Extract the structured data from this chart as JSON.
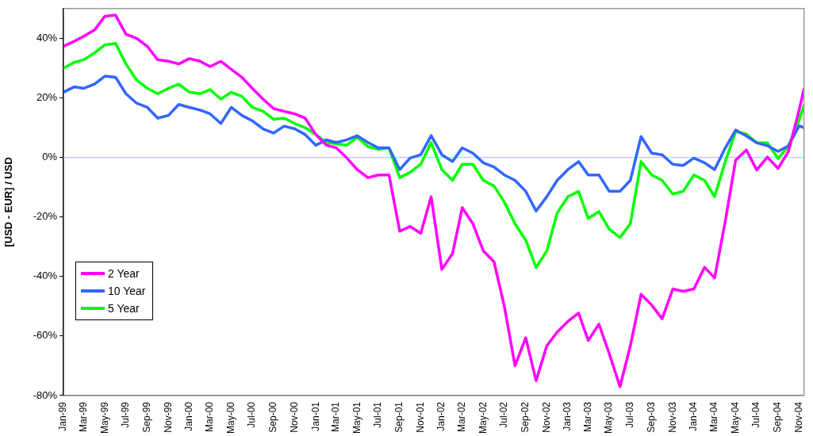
{
  "chart_data": {
    "type": "line",
    "ylabel": "[USD - EUR] / USD",
    "x": [
      "1999-01",
      "1999-02",
      "1999-03",
      "1999-04",
      "1999-05",
      "1999-06",
      "1999-07",
      "1999-08",
      "1999-09",
      "1999-10",
      "1999-11",
      "1999-12",
      "2000-01",
      "2000-02",
      "2000-03",
      "2000-04",
      "2000-05",
      "2000-06",
      "2000-07",
      "2000-08",
      "2000-09",
      "2000-10",
      "2000-11",
      "2000-12",
      "2001-01",
      "2001-02",
      "2001-03",
      "2001-04",
      "2001-05",
      "2001-06",
      "2001-07",
      "2001-08",
      "2001-09",
      "2001-10",
      "2001-11",
      "2001-12",
      "2002-01",
      "2002-02",
      "2002-03",
      "2002-04",
      "2002-05",
      "2002-06",
      "2002-07",
      "2002-08",
      "2002-09",
      "2002-10",
      "2002-11",
      "2002-12",
      "2003-01",
      "2003-02",
      "2003-03",
      "2003-04",
      "2003-05",
      "2003-06",
      "2003-07",
      "2003-08",
      "2003-09",
      "2003-10",
      "2003-11",
      "2003-12",
      "2004-01",
      "2004-02",
      "2004-03",
      "2004-04",
      "2004-05",
      "2004-06",
      "2004-07",
      "2004-08",
      "2004-09",
      "2004-10",
      "2004-11",
      "2004-11-15"
    ],
    "series": [
      {
        "name": "2 Year",
        "color": "#ff00ff",
        "values": [
          37.3,
          39,
          40.7,
          42.8,
          47.4,
          47.8,
          41.4,
          40,
          37.3,
          32.8,
          32.3,
          31.4,
          33.2,
          32.3,
          30.5,
          32.3,
          29.6,
          26.9,
          23.2,
          19.6,
          16.4,
          15.5,
          14.6,
          13.2,
          7.7,
          4.1,
          3.2,
          -0.2,
          -4.1,
          -6.8,
          -5.9,
          -5.9,
          -24.8,
          -23.2,
          -25.5,
          -13.2,
          -37.6,
          -32.3,
          -16.9,
          -22.3,
          -31.4,
          -35,
          -50,
          -70,
          -60.6,
          -75,
          -63.3,
          -58.7,
          -55.1,
          -52.3,
          -61.5,
          -56,
          -66,
          -77,
          -63.3,
          -46,
          -49.6,
          -54.2,
          -44.2,
          -45,
          -44.2,
          -36.9,
          -40.5,
          -21.4,
          -0.9,
          2.5,
          -4.2,
          0.1,
          -3.7,
          2,
          16,
          23
        ]
      },
      {
        "name": "10 Year",
        "color": "#3366ff",
        "values": [
          21.9,
          23.7,
          23.2,
          24.6,
          27.3,
          26.9,
          21.4,
          18.2,
          16.8,
          13.2,
          14.1,
          17.8,
          16.8,
          15.9,
          14.6,
          11.4,
          16.8,
          14.1,
          12.3,
          9.6,
          8.2,
          10.5,
          9.6,
          7.7,
          4.1,
          5.9,
          5,
          5.9,
          7.3,
          5,
          3.2,
          3.2,
          -4.1,
          -0.2,
          0.9,
          7.3,
          0.9,
          -1.4,
          3.2,
          1.4,
          -1.8,
          -3.2,
          -5.9,
          -7.7,
          -11.4,
          -18,
          -13.2,
          -7.7,
          -4.1,
          -1.4,
          -5.9,
          -5.9,
          -11.4,
          -11.4,
          -7.7,
          7,
          1.4,
          0.9,
          -2.3,
          -2.7,
          -0.2,
          -1.8,
          -4.1,
          3.2,
          9.2,
          7.2,
          4.9,
          3.9,
          2,
          3.9,
          10.6,
          10
        ]
      },
      {
        "name": "5 Year",
        "color": "#00ff00",
        "values": [
          30,
          31.9,
          32.8,
          35.1,
          37.8,
          38.3,
          31.4,
          26,
          23.2,
          21.4,
          23.2,
          24.6,
          21.9,
          21.4,
          22.8,
          19.6,
          21.9,
          20.5,
          16.8,
          15.5,
          12.8,
          13.2,
          11.4,
          10,
          7.7,
          5,
          4.6,
          4.1,
          6.8,
          3.6,
          2.7,
          3.2,
          -6.8,
          -5,
          -2.3,
          5,
          -4.1,
          -7.7,
          -2.3,
          -2.3,
          -7.7,
          -9.6,
          -15,
          -22.3,
          -27.8,
          -37,
          -31.4,
          -18.7,
          -13.2,
          -11.4,
          -20.5,
          -18.2,
          -24.1,
          -26.9,
          -22.3,
          -1.4,
          -5.9,
          -7.7,
          -12.3,
          -11.4,
          -5.9,
          -7.7,
          -13.2,
          -1.4,
          8.7,
          7.8,
          4.9,
          4.9,
          -0.4,
          3.9,
          12.5,
          17.5
        ]
      }
    ],
    "xlim": [
      "1999-01",
      "2004-11-15"
    ],
    "xticks": [
      {
        "value": "1999-01",
        "label": "Jan-99"
      },
      {
        "value": "1999-03",
        "label": "Mar-99"
      },
      {
        "value": "1999-05",
        "label": "May-99"
      },
      {
        "value": "1999-07",
        "label": "Jul-99"
      },
      {
        "value": "1999-09",
        "label": "Sep-99"
      },
      {
        "value": "1999-11",
        "label": "Nov-99"
      },
      {
        "value": "2000-01",
        "label": "Jan-00"
      },
      {
        "value": "2000-03",
        "label": "Mar-00"
      },
      {
        "value": "2000-05",
        "label": "May-00"
      },
      {
        "value": "2000-07",
        "label": "Jul-00"
      },
      {
        "value": "2000-09",
        "label": "Sep-00"
      },
      {
        "value": "2000-11",
        "label": "Nov-00"
      },
      {
        "value": "2001-01",
        "label": "Jan-01"
      },
      {
        "value": "2001-03",
        "label": "Mar-01"
      },
      {
        "value": "2001-05",
        "label": "May-01"
      },
      {
        "value": "2001-07",
        "label": "Jul-01"
      },
      {
        "value": "2001-09",
        "label": "Sep-01"
      },
      {
        "value": "2001-11",
        "label": "Nov-01"
      },
      {
        "value": "2002-01",
        "label": "Jan-02"
      },
      {
        "value": "2002-03",
        "label": "Mar-02"
      },
      {
        "value": "2002-05",
        "label": "May-02"
      },
      {
        "value": "2002-07",
        "label": "Jul-02"
      },
      {
        "value": "2002-09",
        "label": "Sep-02"
      },
      {
        "value": "2002-11",
        "label": "Nov-02"
      },
      {
        "value": "2003-01",
        "label": "Jan-03"
      },
      {
        "value": "2003-03",
        "label": "Mar-03"
      },
      {
        "value": "2003-05",
        "label": "May-03"
      },
      {
        "value": "2003-07",
        "label": "Jul-03"
      },
      {
        "value": "2003-09",
        "label": "Sep-03"
      },
      {
        "value": "2003-11",
        "label": "Nov-03"
      },
      {
        "value": "2004-01",
        "label": "Jan-04"
      },
      {
        "value": "2004-03",
        "label": "Mar-04"
      },
      {
        "value": "2004-05",
        "label": "May-04"
      },
      {
        "value": "2004-07",
        "label": "Jul-04"
      },
      {
        "value": "2004-09",
        "label": "Sep-04"
      },
      {
        "value": "2004-11",
        "label": "Nov-04"
      }
    ],
    "ylim": [
      -80,
      50
    ],
    "yticks": [
      {
        "value": -80,
        "label": "-80%"
      },
      {
        "value": -60,
        "label": "-60%"
      },
      {
        "value": -40,
        "label": "-40%"
      },
      {
        "value": -20,
        "label": "-20%"
      },
      {
        "value": 0,
        "label": "0%"
      },
      {
        "value": 20,
        "label": "20%"
      },
      {
        "value": 40,
        "label": "40%"
      }
    ],
    "ref_lines": [
      {
        "axis": "y",
        "value": 0,
        "color": "#66ffff"
      }
    ],
    "grid": false,
    "legend": "bottom left",
    "marker": "none",
    "line_style": "solid"
  }
}
